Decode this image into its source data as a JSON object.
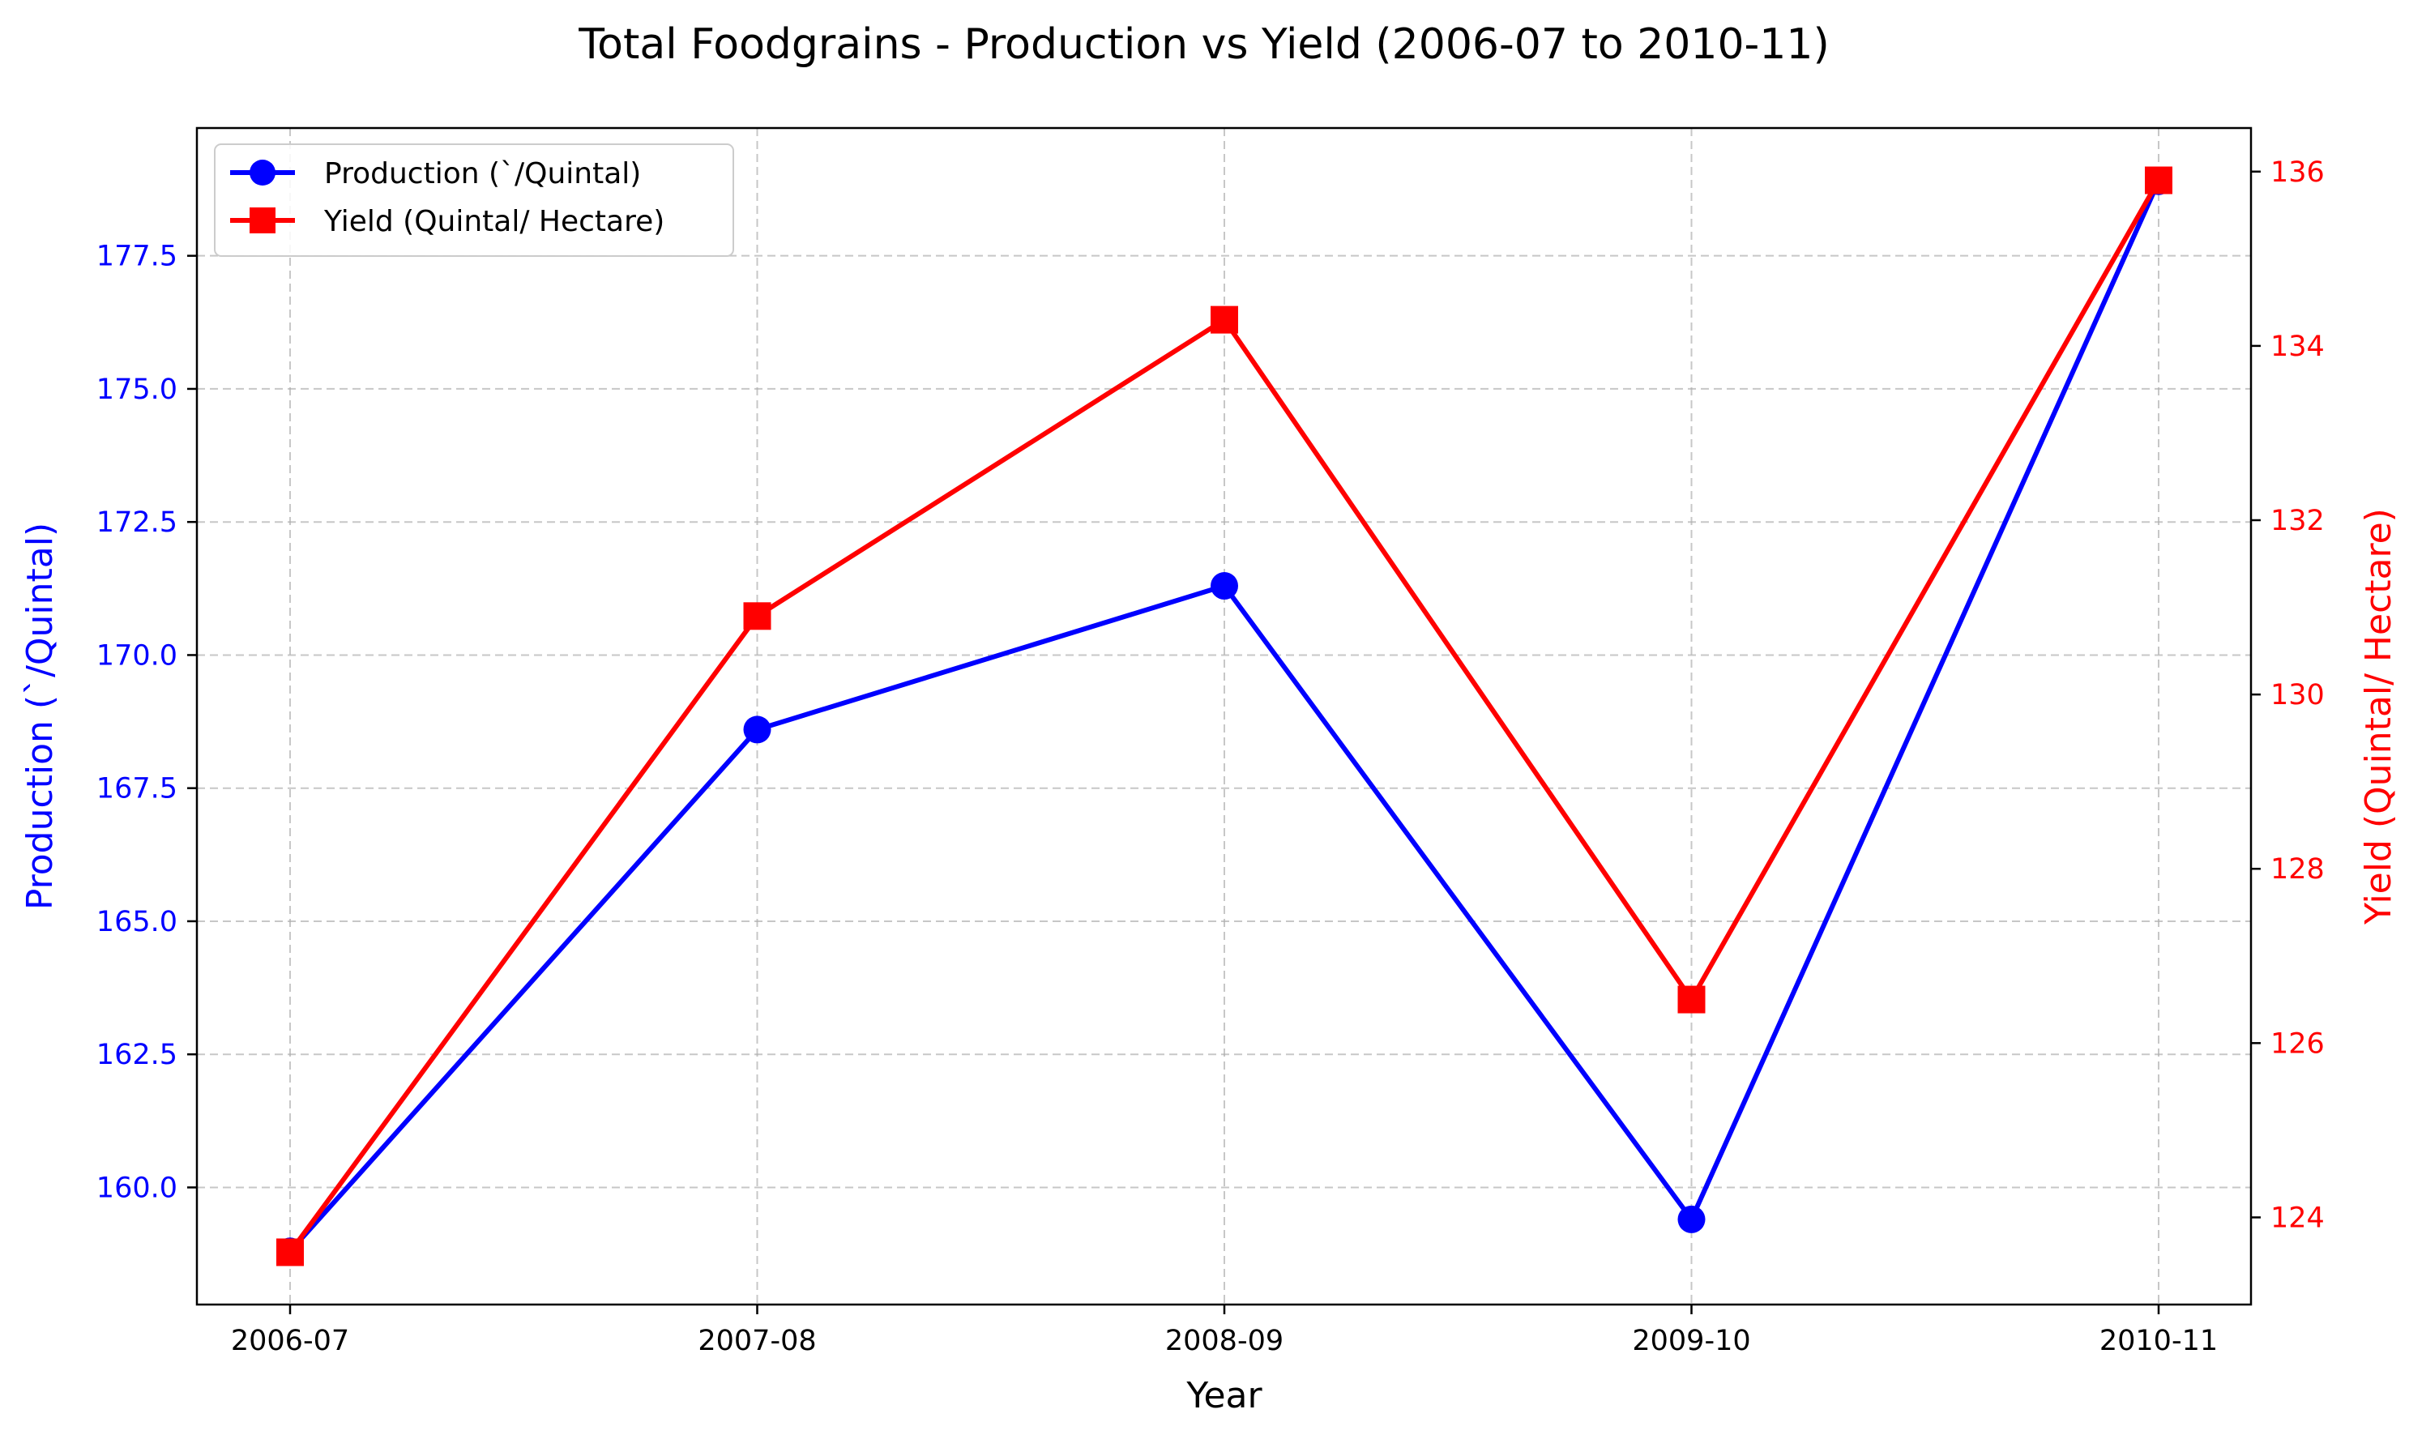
{
  "chart_data": {
    "type": "line",
    "title": "Total Foodgrains - Production vs Yield (2006-07 to 2010-11)",
    "xlabel": "Year",
    "categories": [
      "2006-07",
      "2007-08",
      "2008-09",
      "2009-10",
      "2010-11"
    ],
    "left_axis": {
      "label": "Production (`/Quintal)",
      "color": "#0000ff",
      "ylim": [
        157.8,
        179.9
      ],
      "ticks": [
        160.0,
        162.5,
        165.0,
        167.5,
        170.0,
        172.5,
        175.0,
        177.5
      ],
      "tick_labels": [
        "160.0",
        "162.5",
        "165.0",
        "167.5",
        "170.0",
        "172.5",
        "175.0",
        "177.5"
      ]
    },
    "right_axis": {
      "label": "Yield (Quintal/ Hectare)",
      "color": "#ff0000",
      "ylim": [
        123.0,
        136.5
      ],
      "ticks": [
        124,
        126,
        128,
        130,
        132,
        134,
        136
      ],
      "tick_labels": [
        "124",
        "126",
        "128",
        "130",
        "132",
        "134",
        "136"
      ]
    },
    "series": [
      {
        "name": "Production (`/Quintal)",
        "axis": "left",
        "color": "#0000ff",
        "marker": "circle",
        "values": [
          158.8,
          168.6,
          171.3,
          159.4,
          178.9
        ]
      },
      {
        "name": "Yield (Quintal/ Hectare)",
        "axis": "right",
        "color": "#ff0000",
        "marker": "square",
        "values": [
          123.6,
          130.9,
          134.3,
          126.5,
          135.9
        ]
      }
    ],
    "grid": true,
    "legend_position": "top-left"
  }
}
